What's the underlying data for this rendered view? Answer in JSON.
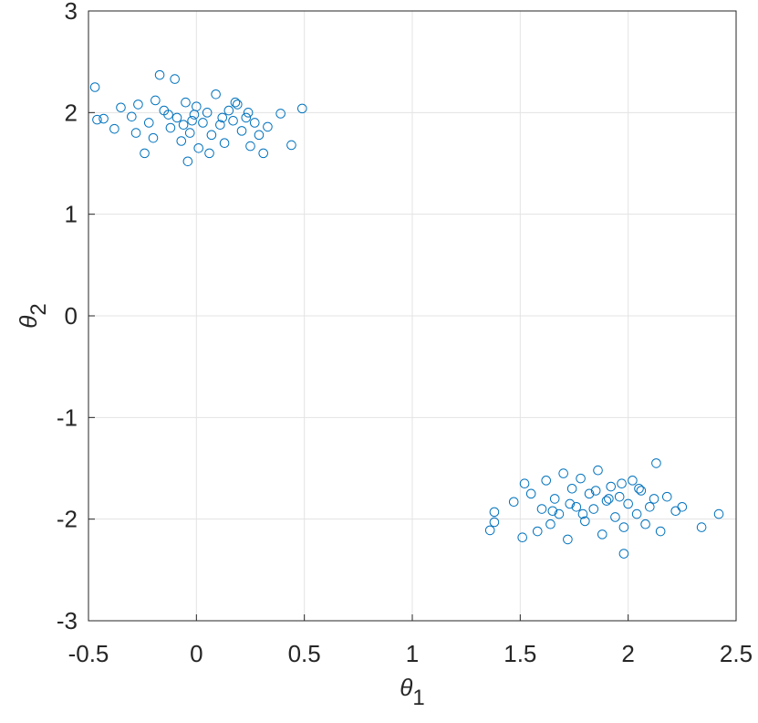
{
  "chart_data": {
    "type": "scatter",
    "xlabel": {
      "symbol": "θ",
      "subscript": "1"
    },
    "ylabel": {
      "symbol": "θ",
      "subscript": "2"
    },
    "xlim": [
      -0.5,
      2.5
    ],
    "xticks": [
      -0.5,
      0,
      0.5,
      1,
      1.5,
      2,
      2.5
    ],
    "ylim": [
      -3,
      3
    ],
    "yticks": [
      -3,
      -2,
      -1,
      0,
      1,
      2,
      3
    ],
    "grid": true,
    "series": [
      {
        "color": "#0072bd",
        "x": [
          -0.47,
          0.49,
          0.44,
          -0.17,
          -0.1,
          -0.24,
          -0.04,
          0.31,
          0.39,
          -0.46,
          -0.43,
          -0.38,
          -0.35,
          -0.3,
          -0.27,
          -0.22,
          -0.19,
          -0.15,
          -0.12,
          -0.09,
          -0.07,
          -0.05,
          -0.03,
          -0.01,
          0.01,
          0.03,
          0.05,
          0.07,
          0.09,
          0.11,
          0.13,
          0.15,
          0.17,
          0.19,
          0.21,
          0.23,
          0.25,
          0.27,
          0.29,
          0.33,
          -0.2,
          -0.13,
          -0.06,
          0.0,
          0.06,
          0.12,
          0.18,
          -0.28,
          0.24,
          -0.02,
          2.42,
          2.34,
          1.36,
          1.38,
          1.38,
          1.98,
          2.13,
          1.47,
          1.51,
          1.52,
          1.55,
          1.58,
          1.6,
          1.62,
          1.64,
          1.66,
          1.68,
          1.7,
          1.72,
          1.74,
          1.76,
          1.78,
          1.8,
          1.82,
          1.84,
          1.86,
          1.88,
          1.9,
          1.92,
          1.94,
          1.96,
          1.98,
          2.0,
          2.02,
          2.04,
          2.06,
          2.08,
          2.1,
          2.12,
          2.15,
          2.18,
          2.22,
          2.25,
          1.73,
          1.79,
          1.85,
          1.91,
          1.97,
          1.65,
          2.05
        ],
        "values": [
          2.25,
          2.04,
          1.68,
          2.37,
          2.33,
          1.6,
          1.52,
          1.6,
          1.99,
          1.93,
          1.94,
          1.84,
          2.05,
          1.96,
          2.08,
          1.9,
          2.12,
          2.02,
          1.85,
          1.95,
          1.72,
          2.1,
          1.8,
          1.98,
          1.65,
          1.9,
          2.0,
          1.78,
          2.18,
          1.88,
          1.7,
          2.02,
          1.92,
          2.08,
          1.82,
          1.95,
          1.67,
          1.9,
          1.78,
          1.86,
          1.75,
          1.98,
          1.88,
          2.06,
          1.6,
          1.95,
          2.1,
          1.8,
          2.0,
          1.92,
          -1.95,
          -2.08,
          -2.11,
          -2.03,
          -1.93,
          -2.34,
          -1.45,
          -1.83,
          -2.18,
          -1.65,
          -1.75,
          -2.12,
          -1.9,
          -1.62,
          -2.05,
          -1.8,
          -1.95,
          -1.55,
          -2.2,
          -1.7,
          -1.88,
          -1.6,
          -2.02,
          -1.75,
          -1.9,
          -1.52,
          -2.15,
          -1.82,
          -1.68,
          -1.98,
          -1.78,
          -2.08,
          -1.85,
          -1.62,
          -1.95,
          -1.72,
          -2.05,
          -1.88,
          -1.8,
          -2.12,
          -1.78,
          -1.92,
          -1.88,
          -1.85,
          -1.95,
          -1.72,
          -1.8,
          -1.65,
          -1.92,
          -1.7
        ]
      }
    ]
  }
}
